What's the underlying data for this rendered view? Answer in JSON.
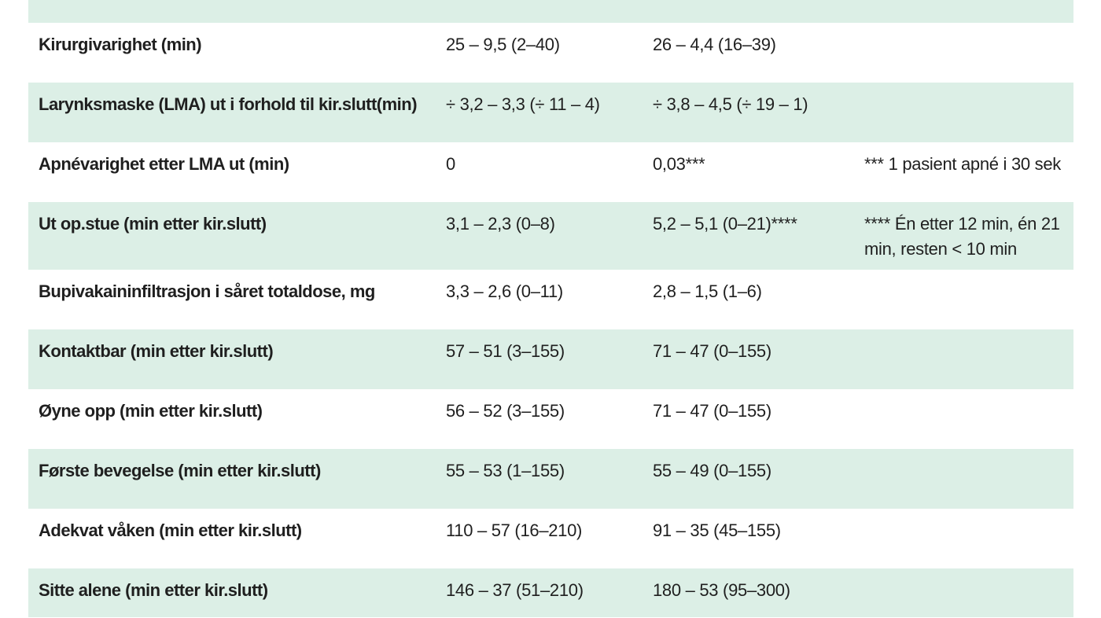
{
  "table": {
    "rows": [
      {
        "label": "Kirurgivarighet (min)",
        "group1": "25 – 9,5 (2–40)",
        "group2": "26 – 4,4 (16–39)",
        "note": ""
      },
      {
        "label": "Larynksmaske (LMA) ut i forhold til kir.slutt(min)",
        "group1": "÷ 3,2 – 3,3 (÷ 11 – 4)",
        "group2": "÷ 3,8 – 4,5 (÷ 19 – 1)",
        "note": ""
      },
      {
        "label": "Apnévarighet etter LMA ut (min)",
        "group1": "0",
        "group2": "0,03***",
        "note": "*** 1 pasient apné i 30 sek"
      },
      {
        "label": "Ut op.stue (min etter kir.slutt)",
        "group1": "3,1 – 2,3 (0–8)",
        "group2": "5,2 – 5,1 (0–21)****",
        "note": "**** Én etter 12 min, én 21 min, resten < 10 min"
      },
      {
        "label": "Bupivakaininfiltrasjon i såret totaldose, mg",
        "group1": "3,3 – 2,6 (0–11)",
        "group2": "2,8 – 1,5 (1–6)",
        "note": ""
      },
      {
        "label": "Kontaktbar (min etter kir.slutt)",
        "group1": "57 – 51 (3–155)",
        "group2": "71 – 47 (0–155)",
        "note": ""
      },
      {
        "label": "Øyne opp (min etter kir.slutt)",
        "group1": "56 – 52 (3–155)",
        "group2": "71 – 47 (0–155)",
        "note": ""
      },
      {
        "label": "Første bevegelse (min etter kir.slutt)",
        "group1": "55 – 53 (1–155)",
        "group2": "55 – 49 (0–155)",
        "note": ""
      },
      {
        "label": "Adekvat våken (min etter kir.slutt)",
        "group1": "110 – 57 (16–210)",
        "group2": "91 – 35 (45–155)",
        "note": ""
      },
      {
        "label": "Sitte alene (min etter kir.slutt)",
        "group1": "146 – 37 (51–210)",
        "group2": "180 – 53 (95–300)",
        "note": ""
      }
    ]
  }
}
